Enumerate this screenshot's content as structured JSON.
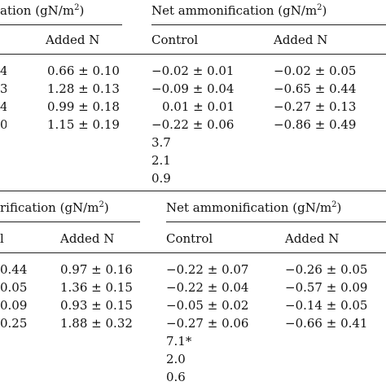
{
  "top": {
    "headers": {
      "group1_title": "ation (gN/m",
      "group1_sup": "2",
      "group1_close": ")",
      "group2_title": "Net ammonification (gN/m",
      "group2_sup": "2",
      "group2_close": ")"
    },
    "columns": {
      "added_n_1": "Added N",
      "control_2": "Control",
      "added_n_2": "Added N"
    },
    "rows": [
      {
        "edge": "4",
        "added_n_1": "0.66 ± 0.10",
        "control_2": "−0.02 ± 0.01",
        "added_n_2": "−0.02 ± 0.05"
      },
      {
        "edge": "3",
        "added_n_1": "1.28 ± 0.13",
        "control_2": "−0.09 ± 0.04",
        "added_n_2": "−0.65 ± 0.44"
      },
      {
        "edge": "4",
        "added_n_1": "0.99 ± 0.18",
        "control_2": "0.01 ± 0.01",
        "added_n_2": "−0.27 ± 0.13"
      },
      {
        "edge": "0",
        "added_n_1": "1.15 ± 0.19",
        "control_2": "−0.22 ± 0.06",
        "added_n_2": "−0.86 ± 0.49"
      },
      {
        "edge": "",
        "added_n_1": "",
        "control_2": "3.7",
        "added_n_2": ""
      },
      {
        "edge": "",
        "added_n_1": "",
        "control_2": "2.1",
        "added_n_2": ""
      },
      {
        "edge": "",
        "added_n_1": "",
        "control_2": "0.9",
        "added_n_2": ""
      }
    ]
  },
  "bottom": {
    "headers": {
      "group1_title": "rification (gN/m",
      "group1_sup": "2",
      "group1_close": ")",
      "group2_title": "Net ammonification (gN/m",
      "group2_sup": "2",
      "group2_close": ")"
    },
    "columns": {
      "control_1_edge": "l",
      "added_n_1": "Added N",
      "control_2": "Control",
      "added_n_2": "Added N"
    },
    "rows": [
      {
        "control_1": "0.44",
        "added_n_1": "0.97 ± 0.16",
        "control_2": "−0.22 ± 0.07",
        "added_n_2": "−0.26 ± 0.05"
      },
      {
        "control_1": "0.05",
        "added_n_1": "1.36 ± 0.15",
        "control_2": "−0.22 ± 0.04",
        "added_n_2": "−0.57 ± 0.09"
      },
      {
        "control_1": "0.09",
        "added_n_1": "0.93 ± 0.15",
        "control_2": "−0.05 ± 0.02",
        "added_n_2": "−0.14 ± 0.05"
      },
      {
        "control_1": "0.25",
        "added_n_1": "1.88 ± 0.32",
        "control_2": "−0.27 ± 0.06",
        "added_n_2": "−0.66 ± 0.41"
      },
      {
        "control_1": "",
        "added_n_1": "",
        "control_2": "7.1*",
        "added_n_2": ""
      },
      {
        "control_1": "",
        "added_n_1": "",
        "control_2": "2.0",
        "added_n_2": ""
      },
      {
        "control_1": "",
        "added_n_1": "",
        "control_2": "0.6",
        "added_n_2": ""
      }
    ]
  }
}
